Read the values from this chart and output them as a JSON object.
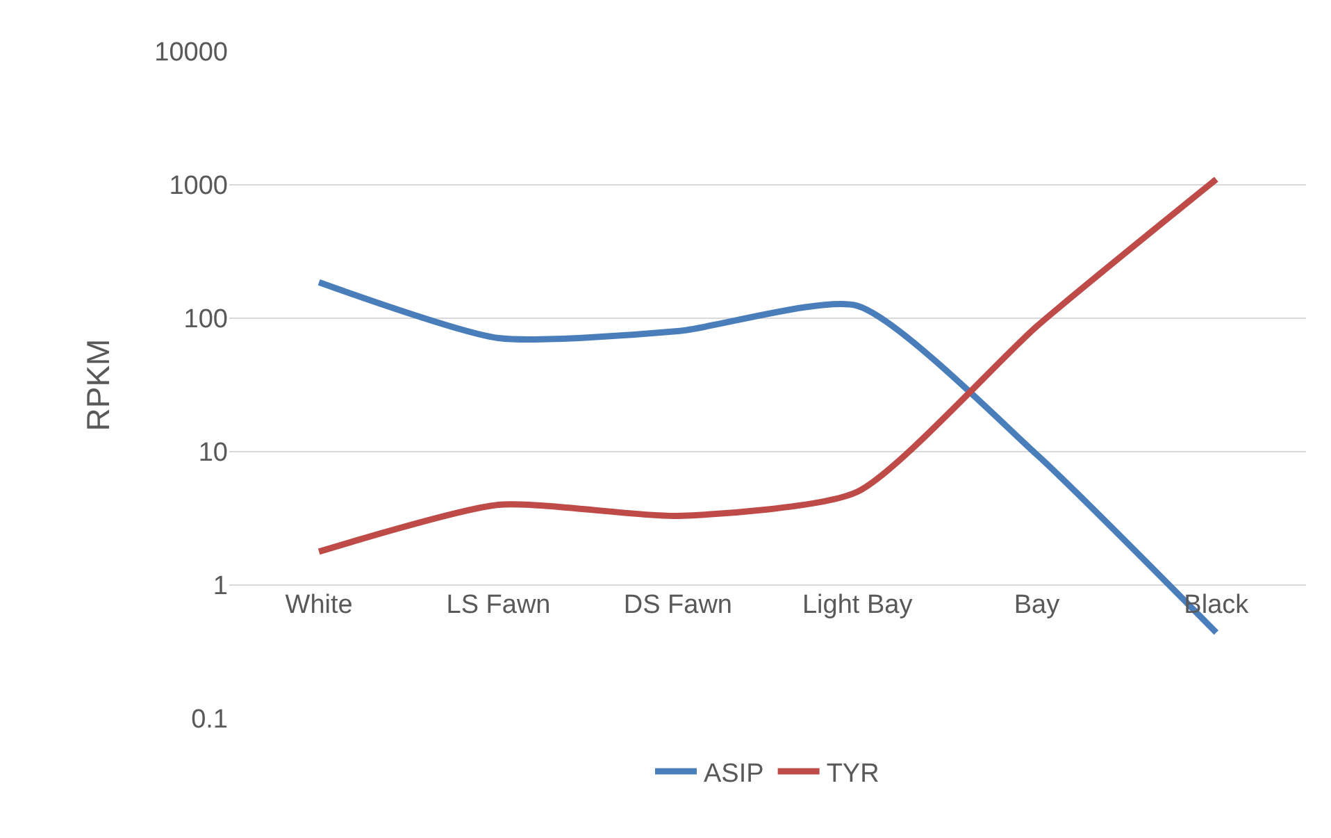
{
  "chart_data": {
    "type": "line",
    "ylabel": "RPKM",
    "categories": [
      "White",
      "LS Fawn",
      "DS Fawn",
      "Light Bay",
      "Bay",
      "Black"
    ],
    "series": [
      {
        "name": "ASIP",
        "color": "#4a7ebb",
        "values": [
          186,
          71,
          80,
          124,
          9.5,
          0.44
        ]
      },
      {
        "name": "TYR",
        "color": "#be4b48",
        "values": [
          1.78,
          4.0,
          3.3,
          5.0,
          87,
          1100
        ]
      }
    ],
    "log": "y",
    "ylim": [
      0.1,
      10000
    ],
    "yticks": [
      0.1,
      1,
      10,
      100,
      1000,
      10000
    ],
    "grid": "y",
    "legend": "bottom",
    "marker": "none",
    "line_style": "solid"
  }
}
